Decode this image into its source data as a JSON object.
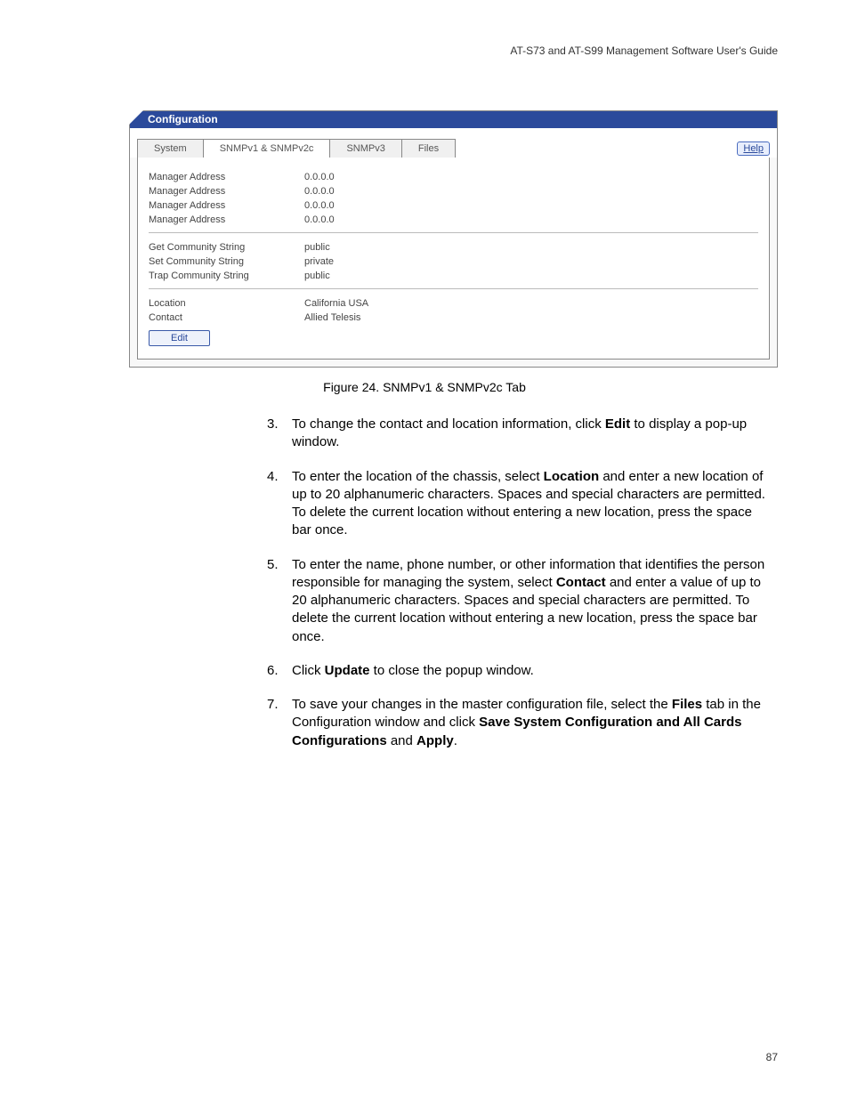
{
  "header": {
    "guide_title": "AT-S73 and AT-S99 Management Software User's Guide"
  },
  "panel": {
    "title": "Configuration",
    "tabs": {
      "system": "System",
      "snmp12": "SNMPv1 & SNMPv2c",
      "snmp3": "SNMPv3",
      "files": "Files"
    },
    "help_label": "Help",
    "rows": {
      "mgr1_label": "Manager Address",
      "mgr1_value": "0.0.0.0",
      "mgr2_label": "Manager Address",
      "mgr2_value": "0.0.0.0",
      "mgr3_label": "Manager Address",
      "mgr3_value": "0.0.0.0",
      "mgr4_label": "Manager Address",
      "mgr4_value": "0.0.0.0",
      "get_label": "Get Community String",
      "get_value": "public",
      "set_label": "Set Community String",
      "set_value": "private",
      "trap_label": "Trap Community String",
      "trap_value": "public",
      "loc_label": "Location",
      "loc_value": "California USA",
      "contact_label": "Contact",
      "contact_value": "Allied Telesis"
    },
    "edit_label": "Edit"
  },
  "caption": "Figure 24. SNMPv1 & SNMPv2c Tab",
  "steps": {
    "s3_num": "3.",
    "s3_a": "To change the contact and location information, click ",
    "s3_b": "Edit",
    "s3_c": " to display a pop-up window.",
    "s4_num": "4.",
    "s4_a": "To enter the location of the chassis, select ",
    "s4_b": "Location",
    "s4_c": " and enter a new location of up to 20 alphanumeric characters. Spaces and special characters are permitted. To delete the current location without entering a new location, press the space bar once.",
    "s5_num": "5.",
    "s5_a": "To enter the name, phone number, or other information that identifies the person responsible for managing the system, select ",
    "s5_b": "Contact",
    "s5_c": " and enter a value of up to 20 alphanumeric characters. Spaces and special characters are permitted. To delete the current location without entering a new location, press the space bar once.",
    "s6_num": "6.",
    "s6_a": "Click ",
    "s6_b": "Update",
    "s6_c": " to close the popup window.",
    "s7_num": "7.",
    "s7_a": "To save your changes in the master configuration file, select the ",
    "s7_b": "Files",
    "s7_c": " tab in the Configuration window and click ",
    "s7_d": "Save System Configuration and All Cards Configurations",
    "s7_e": " and ",
    "s7_f": "Apply",
    "s7_g": "."
  },
  "page_number": "87"
}
